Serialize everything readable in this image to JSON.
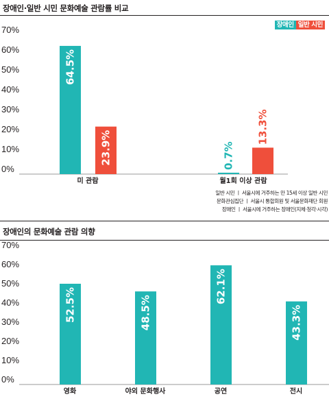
{
  "chart_data": [
    {
      "type": "bar",
      "title": "장애인·일반 시민 문화예술 관람률 비교",
      "categories": [
        "미 관람",
        "월1회 이상 관람"
      ],
      "series": [
        {
          "name": "장애인",
          "values": [
            64.5,
            0.7
          ],
          "labels": [
            "64.5%",
            "0.7%"
          ],
          "color": "#21b6b4"
        },
        {
          "name": "일반 시민",
          "values": [
            23.9,
            13.3
          ],
          "labels": [
            "23.9%",
            "13.3%"
          ],
          "color": "#ef4f3b"
        }
      ],
      "yticks": [
        "70%",
        "60%",
        "50%",
        "40%",
        "30%",
        "20%",
        "10%",
        "0%"
      ],
      "ylim": [
        0,
        70
      ],
      "legend_position": "top-right",
      "grid": false
    },
    {
      "type": "bar",
      "title": "장애인의 문화예술 관람 의향",
      "categories": [
        "영화",
        "야외 문화행사",
        "공연",
        "전시"
      ],
      "series": [
        {
          "values": [
            52.5,
            48.5,
            62.1,
            43.3
          ],
          "labels": [
            "52.5%",
            "48.5%",
            "62.1%",
            "43.3%"
          ],
          "color": "#21b6b4"
        }
      ],
      "yticks": [
        "70%",
        "60%",
        "50%",
        "40%",
        "30%",
        "20%",
        "10%",
        "0%"
      ],
      "ylim": [
        0,
        70
      ],
      "grid": false
    }
  ],
  "note_lines": [
    "일반 시민 ㅣ 서울시에 거주하는 만 15세 이상 일반 시민",
    "문화관심집단 ㅣ 서울시 통합회원 및 서울문화재단 회원",
    "장애인 ㅣ 서울시에 거주하는 장애인(지체·청각·시각)"
  ],
  "colors": {
    "teal": "#21b6b4",
    "red": "#ef4f3b",
    "text": "#231f20",
    "axis": "#9a9a9a"
  }
}
